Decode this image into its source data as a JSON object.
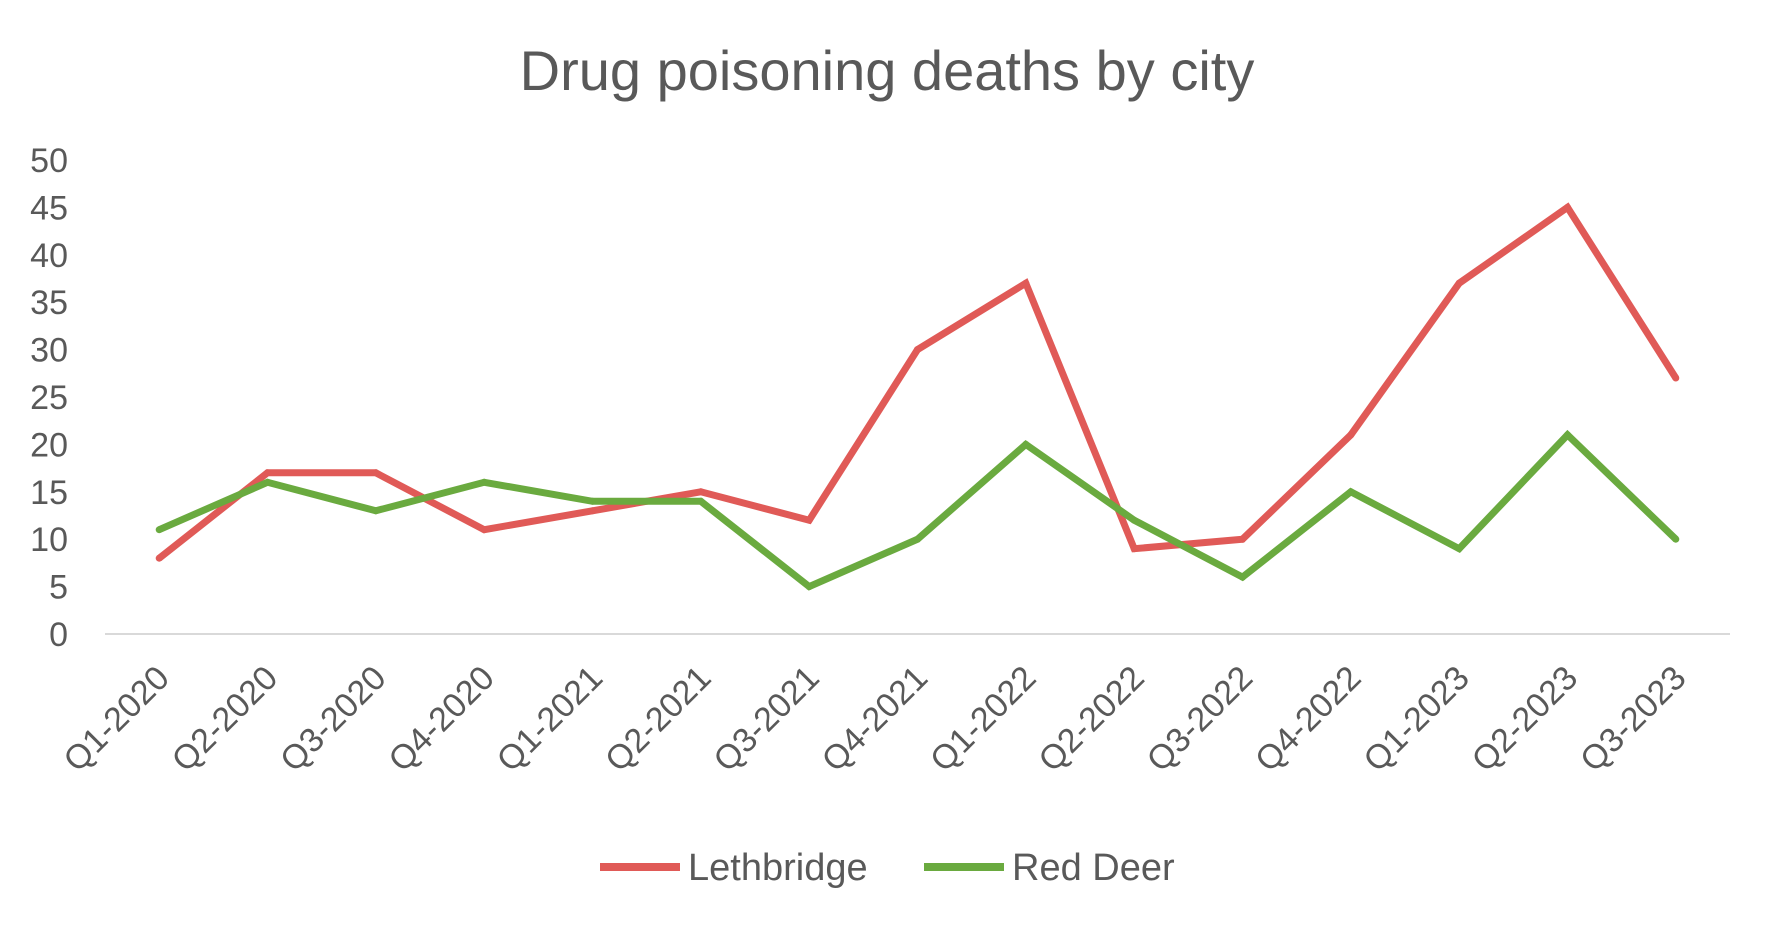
{
  "chart_data": {
    "type": "line",
    "title": "Drug poisoning deaths by city",
    "xlabel": "",
    "ylabel": "",
    "categories": [
      "Q1-2020",
      "Q2-2020",
      "Q3-2020",
      "Q4-2020",
      "Q1-2021",
      "Q2-2021",
      "Q3-2021",
      "Q4-2021",
      "Q1-2022",
      "Q2-2022",
      "Q3-2022",
      "Q4-2022",
      "Q1-2023",
      "Q2-2023",
      "Q3-2023"
    ],
    "ylim": [
      0,
      50
    ],
    "yticks": [
      "0",
      "5",
      "10",
      "15",
      "20",
      "25",
      "30",
      "35",
      "40",
      "45",
      "50"
    ],
    "grid": false,
    "legend_position": "bottom",
    "series": [
      {
        "name": "Lethbridge",
        "color": "#e05a57",
        "values": [
          8,
          17,
          17,
          11,
          13,
          15,
          12,
          30,
          37,
          9,
          10,
          21,
          37,
          45,
          27
        ]
      },
      {
        "name": "Red Deer",
        "color": "#6aaa3f",
        "values": [
          11,
          16,
          13,
          16,
          14,
          14,
          5,
          10,
          20,
          12,
          6,
          15,
          9,
          21,
          10
        ]
      }
    ]
  }
}
